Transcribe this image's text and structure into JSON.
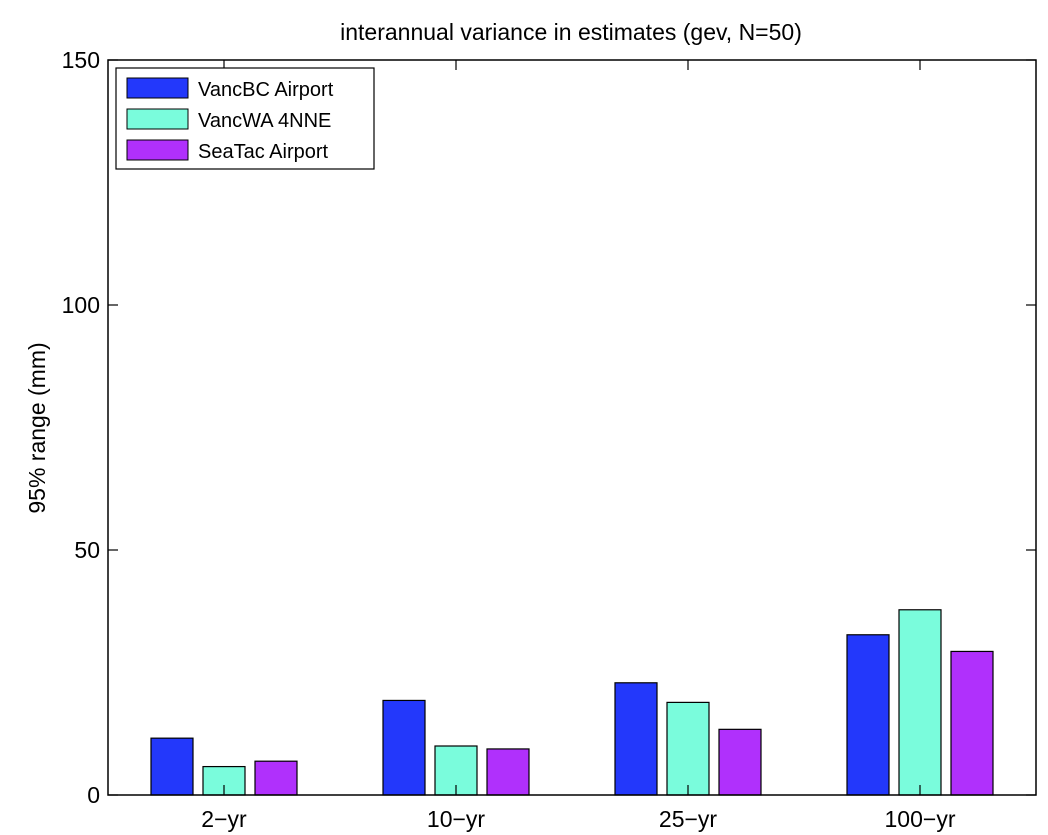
{
  "chart_data": {
    "type": "bar",
    "title": "interannual variance in estimates (gev, N=50)",
    "xlabel": "",
    "ylabel": "95% range (mm)",
    "categories": [
      "2−yr",
      "10−yr",
      "25−yr",
      "100−yr"
    ],
    "ylim": [
      0,
      150
    ],
    "yticks": [
      0,
      50,
      100,
      150
    ],
    "grid": false,
    "legend_position": "top-left",
    "series": [
      {
        "name": "VancBC Airport",
        "color": "#2338fb",
        "values": [
          11.6,
          19.3,
          22.9,
          32.7
        ]
      },
      {
        "name": "VancWA 4NNE",
        "color": "#7afcdc",
        "values": [
          5.8,
          10.0,
          18.9,
          37.8
        ]
      },
      {
        "name": "SeaTac Airport",
        "color": "#b030fc",
        "values": [
          6.9,
          9.4,
          13.4,
          29.3
        ]
      }
    ]
  }
}
